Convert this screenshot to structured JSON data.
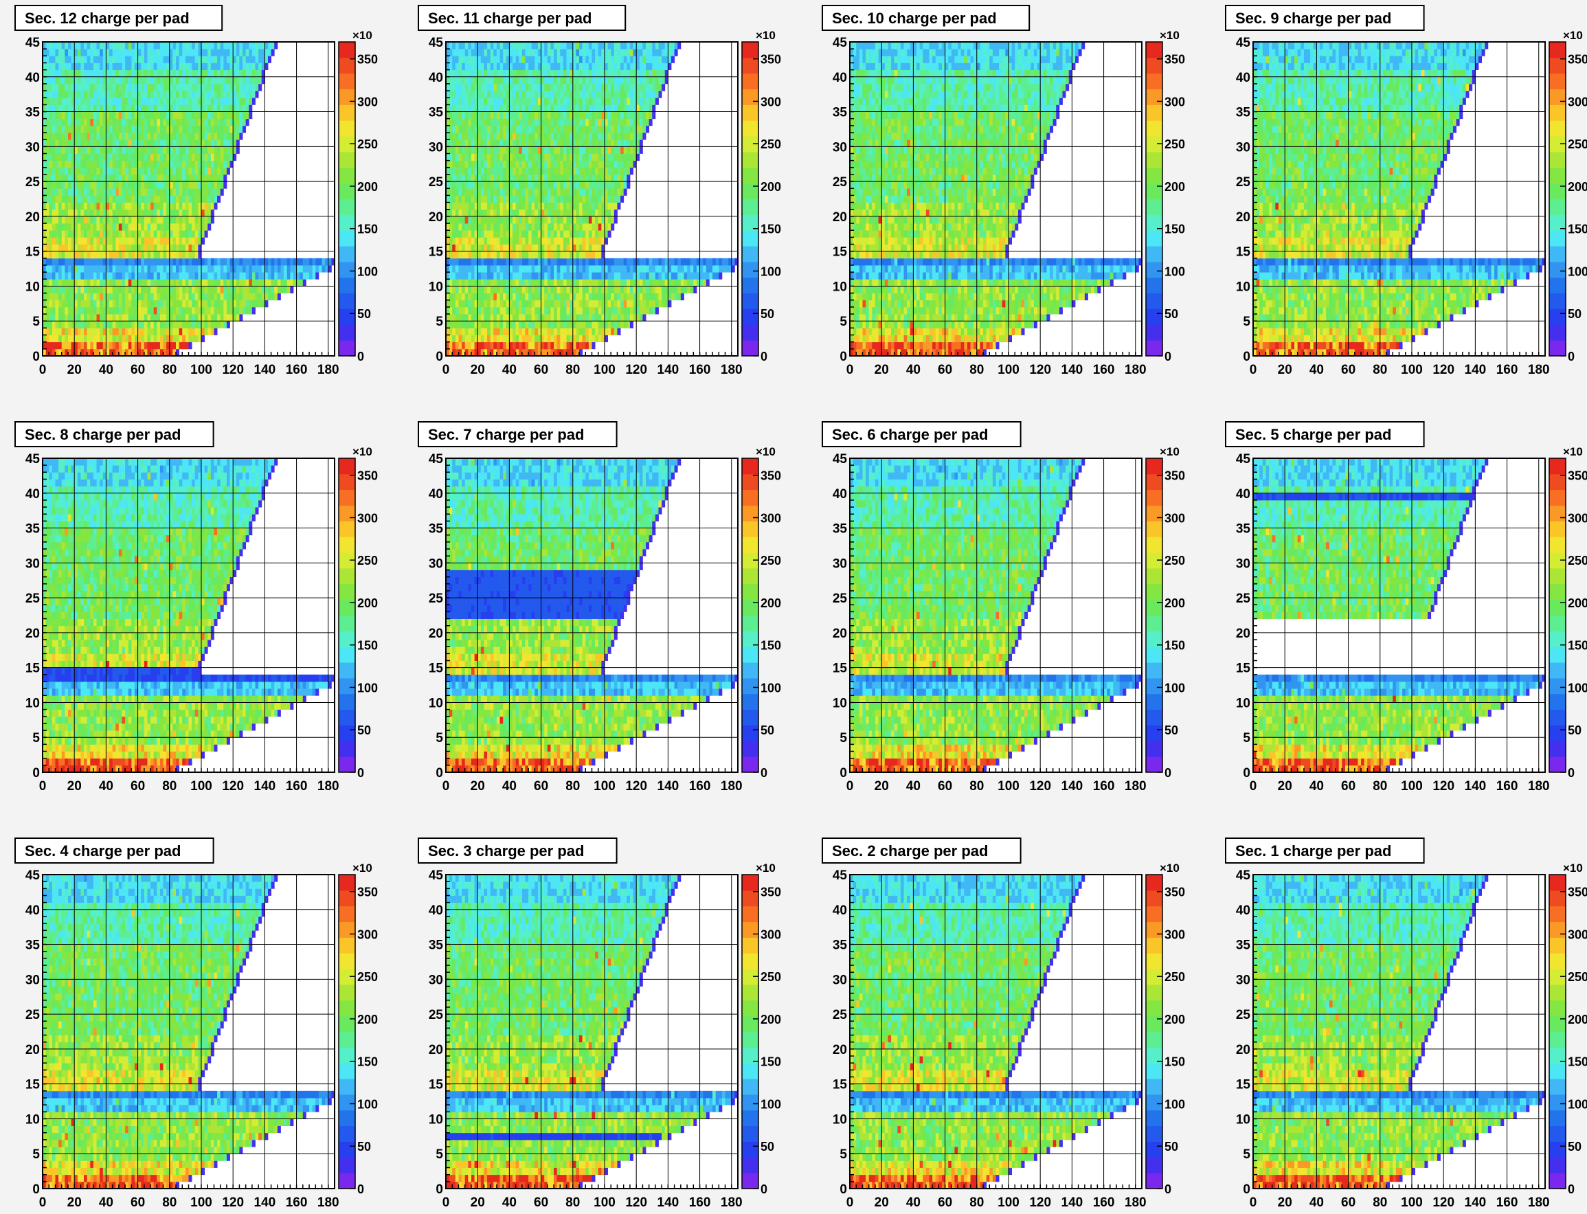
{
  "chart_data": {
    "type": "heatmap",
    "shared": {
      "x_range": [
        0,
        184
      ],
      "y_range": [
        0,
        45
      ],
      "x_ticks": [
        "0",
        "20",
        "40",
        "60",
        "80",
        "100",
        "120",
        "140",
        "160",
        "180"
      ],
      "y_ticks": [
        "0",
        "5",
        "10",
        "15",
        "20",
        "25",
        "30",
        "35",
        "40",
        "45"
      ],
      "z_range": [
        0,
        3700
      ],
      "z_ticks": [
        "0",
        "50",
        "100",
        "150",
        "200",
        "250",
        "300",
        "350"
      ],
      "z_exponent": "×10",
      "grid": true,
      "colormap": "rainbow"
    },
    "panels": [
      {
        "title": "Sec. 12 charge per pad",
        "features": []
      },
      {
        "title": "Sec. 11 charge per pad",
        "features": []
      },
      {
        "title": "Sec. 10 charge per pad",
        "features": []
      },
      {
        "title": "Sec. 9 charge per pad",
        "features": []
      },
      {
        "title": "Sec. 8 charge per pad",
        "features": [
          "low_rows_13_14"
        ]
      },
      {
        "title": "Sec. 7 charge per pad",
        "features": [
          "low_rows_22_29"
        ]
      },
      {
        "title": "Sec. 6 charge per pad",
        "features": []
      },
      {
        "title": "Sec. 5 charge per pad",
        "features": [
          "empty_rows_14_22",
          "low_row_39_40"
        ]
      },
      {
        "title": "Sec. 4 charge per pad",
        "features": []
      },
      {
        "title": "Sec. 3 charge per pad",
        "features": [
          "low_row_7_8"
        ]
      },
      {
        "title": "Sec. 2 charge per pad",
        "features": []
      },
      {
        "title": "Sec. 1 charge per pad",
        "features": []
      }
    ]
  }
}
